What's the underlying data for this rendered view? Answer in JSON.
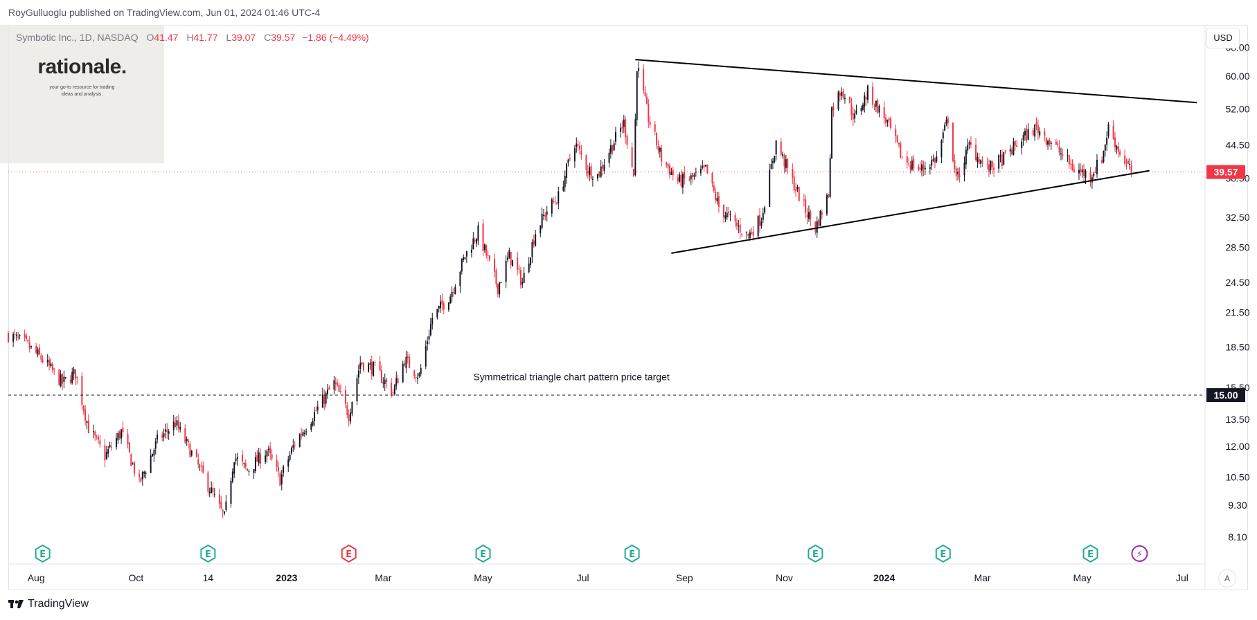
{
  "publisher": "RoyGulluoglu published on TradingView.com, Jun 01, 2024 01:46 UTC-4",
  "legend": {
    "symbol": "Symbotic Inc., 1D, NASDAQ",
    "open_label": "O",
    "open": "41.47",
    "high_label": "H",
    "high": "41.77",
    "low_label": "L",
    "low": "39.07",
    "close_label": "C",
    "close": "39.57",
    "change": "−1.86 (−4.49%)"
  },
  "logo": {
    "title": "rationale.",
    "tagline_1": "your go-to resource for trading",
    "tagline_2": "ideas and analysis."
  },
  "footer": {
    "brand": "TradingView"
  },
  "currency": "USD",
  "auto_label": "A",
  "colors": {
    "up": "#131722",
    "down": "#f23645",
    "price_line": "#f23645",
    "target_line": "#131722"
  },
  "chart_data": {
    "type": "candlestick",
    "title": "Symbotic Inc., 1D, NASDAQ",
    "y_scale": "log",
    "ylim": [
      7.2,
      75
    ],
    "y_ticks": [
      "68.00",
      "60.00",
      "52.00",
      "44.50",
      "38.50",
      "32.50",
      "28.50",
      "24.50",
      "21.50",
      "18.50",
      "15.50",
      "13.50",
      "12.00",
      "10.50",
      "9.30",
      "8.10"
    ],
    "x_ticks": [
      {
        "label": "Aug",
        "date": "2022-08-01"
      },
      {
        "label": "Oct",
        "date": "2022-10-01"
      },
      {
        "label": "14",
        "date": "2022-11-14"
      },
      {
        "label": "2023",
        "date": "2023-01-01",
        "bold": true
      },
      {
        "label": "Mar",
        "date": "2023-03-01"
      },
      {
        "label": "May",
        "date": "2023-05-01"
      },
      {
        "label": "Jul",
        "date": "2023-07-01"
      },
      {
        "label": "Sep",
        "date": "2023-09-01"
      },
      {
        "label": "Nov",
        "date": "2023-11-01"
      },
      {
        "label": "2024",
        "date": "2024-01-01",
        "bold": true
      },
      {
        "label": "Mar",
        "date": "2024-03-01"
      },
      {
        "label": "May",
        "date": "2024-05-01"
      },
      {
        "label": "Jul",
        "date": "2024-07-01"
      }
    ],
    "xlim": [
      "2022-07-15",
      "2024-07-15"
    ],
    "price_path": [
      [
        "2022-07-15",
        19.5
      ],
      [
        "2022-07-25",
        18.8
      ],
      [
        "2022-08-05",
        17.5
      ],
      [
        "2022-08-17",
        15.8
      ],
      [
        "2022-08-25",
        16.5
      ],
      [
        "2022-09-02",
        13.0
      ],
      [
        "2022-09-12",
        11.5
      ],
      [
        "2022-09-22",
        12.8
      ],
      [
        "2022-10-03",
        10.2
      ],
      [
        "2022-10-14",
        12.3
      ],
      [
        "2022-10-25",
        13.3
      ],
      [
        "2022-11-03",
        11.8
      ],
      [
        "2022-11-15",
        10.0
      ],
      [
        "2022-11-24",
        8.8
      ],
      [
        "2022-11-30",
        11.5
      ],
      [
        "2022-12-08",
        10.8
      ],
      [
        "2022-12-20",
        11.8
      ],
      [
        "2022-12-28",
        10.4
      ],
      [
        "2023-01-06",
        12.2
      ],
      [
        "2023-01-19",
        14.0
      ],
      [
        "2023-01-30",
        15.8
      ],
      [
        "2023-02-08",
        13.8
      ],
      [
        "2023-02-15",
        17.3
      ],
      [
        "2023-02-24",
        16.8
      ],
      [
        "2023-03-07",
        15.2
      ],
      [
        "2023-03-14",
        17.5
      ],
      [
        "2023-03-23",
        16.3
      ],
      [
        "2023-03-31",
        21.0
      ],
      [
        "2023-04-11",
        23.2
      ],
      [
        "2023-04-20",
        27.5
      ],
      [
        "2023-04-28",
        30.5
      ],
      [
        "2023-05-05",
        26.5
      ],
      [
        "2023-05-10",
        24.0
      ],
      [
        "2023-05-17",
        27.5
      ],
      [
        "2023-05-25",
        24.5
      ],
      [
        "2023-06-02",
        30.5
      ],
      [
        "2023-06-09",
        33.5
      ],
      [
        "2023-06-16",
        35.5
      ],
      [
        "2023-06-26",
        45.0
      ],
      [
        "2023-07-04",
        40.0
      ],
      [
        "2023-07-10",
        39.0
      ],
      [
        "2023-07-18",
        44.0
      ],
      [
        "2023-07-26",
        49.0
      ],
      [
        "2023-08-01",
        39.0
      ],
      [
        "2023-08-03",
        63.0
      ],
      [
        "2023-08-10",
        50.0
      ],
      [
        "2023-08-18",
        42.0
      ],
      [
        "2023-08-28",
        38.0
      ],
      [
        "2023-09-06",
        38.5
      ],
      [
        "2023-09-14",
        40.0
      ],
      [
        "2023-09-22",
        34.0
      ],
      [
        "2023-10-02",
        31.5
      ],
      [
        "2023-10-10",
        30.0
      ],
      [
        "2023-10-18",
        32.5
      ],
      [
        "2023-10-27",
        45.0
      ],
      [
        "2023-11-06",
        38.0
      ],
      [
        "2023-11-14",
        33.5
      ],
      [
        "2023-11-20",
        31.0
      ],
      [
        "2023-11-28",
        36.0
      ],
      [
        "2023-11-30",
        52.0
      ],
      [
        "2023-12-06",
        57.0
      ],
      [
        "2023-12-14",
        50.0
      ],
      [
        "2023-12-22",
        56.0
      ],
      [
        "2024-01-03",
        49.0
      ],
      [
        "2024-01-12",
        42.0
      ],
      [
        "2024-01-23",
        40.0
      ],
      [
        "2024-02-02",
        42.0
      ],
      [
        "2024-02-09",
        50.0
      ],
      [
        "2024-02-14",
        38.0
      ],
      [
        "2024-02-22",
        44.5
      ],
      [
        "2024-03-04",
        40.0
      ],
      [
        "2024-03-14",
        42.0
      ],
      [
        "2024-03-26",
        46.0
      ],
      [
        "2024-04-03",
        48.0
      ],
      [
        "2024-04-15",
        44.0
      ],
      [
        "2024-04-26",
        40.0
      ],
      [
        "2024-05-06",
        39.0
      ],
      [
        "2024-05-13",
        42.0
      ],
      [
        "2024-05-17",
        48.0
      ],
      [
        "2024-05-24",
        43.0
      ],
      [
        "2024-05-31",
        39.57
      ]
    ],
    "trendlines": [
      {
        "name": "upper",
        "from": [
          "2023-08-02",
          64.5
        ],
        "to": [
          "2024-07-10",
          53.5
        ]
      },
      {
        "name": "lower",
        "from": [
          "2023-08-24",
          27.8
        ],
        "to": [
          "2024-06-11",
          39.8
        ]
      }
    ],
    "horizontal_lines": [
      {
        "name": "current-price",
        "value": 39.57,
        "label": "39.57",
        "style": "dotted",
        "color": "#f23645"
      },
      {
        "name": "price-target",
        "value": 15.0,
        "label": "15.00",
        "style": "dashed",
        "color": "#131722"
      }
    ],
    "annotations": [
      {
        "text": "Symmetrical triangle chart pattern price target",
        "date": "2023-06-24",
        "value": 16.0
      }
    ],
    "events": [
      {
        "date": "2022-08-05",
        "type": "earnings",
        "label": "E",
        "color": "#22ab94"
      },
      {
        "date": "2022-11-14",
        "type": "earnings",
        "label": "E",
        "color": "#22ab94"
      },
      {
        "date": "2023-02-08",
        "type": "earnings",
        "label": "E",
        "color": "#f23645"
      },
      {
        "date": "2023-05-01",
        "type": "earnings",
        "label": "E",
        "color": "#22ab94"
      },
      {
        "date": "2023-07-31",
        "type": "earnings",
        "label": "E",
        "color": "#22ab94"
      },
      {
        "date": "2023-11-20",
        "type": "earnings",
        "label": "E",
        "color": "#22ab94"
      },
      {
        "date": "2024-02-06",
        "type": "earnings",
        "label": "E",
        "color": "#22ab94"
      },
      {
        "date": "2024-05-06",
        "type": "earnings",
        "label": "E",
        "color": "#22ab94"
      },
      {
        "date": "2024-06-05",
        "type": "upcoming",
        "label": "⚡",
        "color": "#9c27b0"
      }
    ]
  }
}
